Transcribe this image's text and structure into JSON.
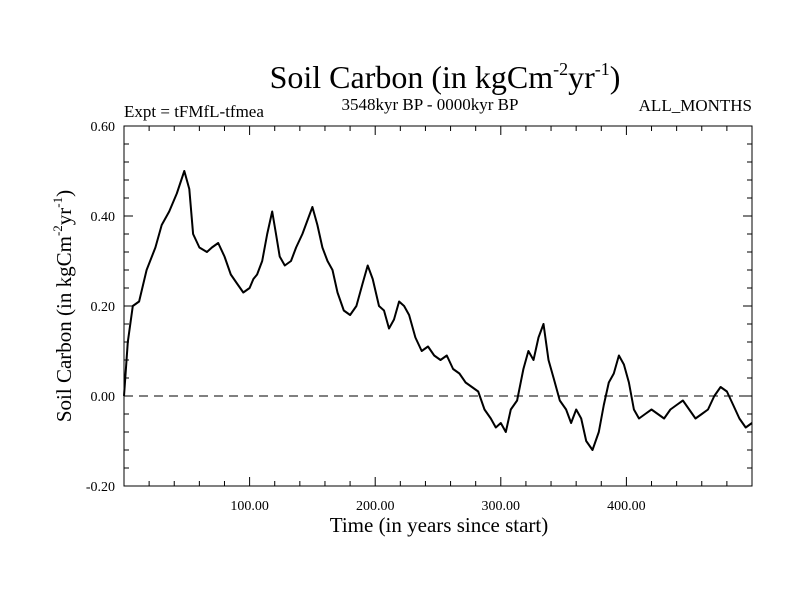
{
  "chart_data": {
    "type": "line",
    "title_main": "Soil Carbon (in kgCm",
    "title_exp1": "-2",
    "title_mid": "yr",
    "title_exp2": "-1",
    "title_end": ")",
    "left_label": "Expt = tFMfL-tfmea",
    "center_label": "3548kyr BP - 0000kyr BP",
    "right_label": "ALL_MONTHS",
    "xlabel": "Time (in years since start)",
    "ylabel_main": "Soil Carbon (in kgCm",
    "ylabel_exp1": "-2",
    "ylabel_mid": "yr",
    "ylabel_exp2": "-1",
    "ylabel_end": ")",
    "xlim": [
      0,
      500
    ],
    "ylim": [
      -0.2,
      0.6
    ],
    "x_ticks": [
      100,
      200,
      300,
      400
    ],
    "x_tick_labels": [
      "100.00",
      "200.00",
      "300.00",
      "400.00"
    ],
    "y_ticks": [
      -0.2,
      0.0,
      0.2,
      0.4,
      0.6
    ],
    "y_tick_labels": [
      "-0.20",
      "0.00",
      "0.20",
      "0.40",
      "0.60"
    ],
    "zero_line": 0.0,
    "series": [
      {
        "name": "Soil Carbon",
        "x": [
          0,
          3,
          7,
          12,
          18,
          25,
          30,
          36,
          42,
          48,
          52,
          55,
          60,
          66,
          70,
          75,
          80,
          85,
          90,
          95,
          100,
          103,
          106,
          110,
          114,
          118,
          121,
          124,
          128,
          133,
          137,
          142,
          146,
          150,
          154,
          158,
          162,
          166,
          170,
          175,
          180,
          185,
          190,
          194,
          198,
          203,
          207,
          211,
          215,
          219,
          223,
          227,
          232,
          237,
          242,
          247,
          252,
          257,
          262,
          267,
          272,
          277,
          282,
          287,
          292,
          296,
          300,
          304,
          308,
          313,
          318,
          322,
          326,
          330,
          334,
          338,
          342,
          347,
          352,
          356,
          360,
          364,
          368,
          373,
          378,
          382,
          386,
          390,
          394,
          398,
          402,
          406,
          410,
          415,
          420,
          425,
          430,
          435,
          440,
          445,
          450,
          455,
          460,
          465,
          470,
          475,
          480,
          485,
          490,
          495,
          500
        ],
        "y": [
          0.0,
          0.12,
          0.2,
          0.21,
          0.28,
          0.33,
          0.38,
          0.41,
          0.45,
          0.5,
          0.46,
          0.36,
          0.33,
          0.32,
          0.33,
          0.34,
          0.31,
          0.27,
          0.25,
          0.23,
          0.24,
          0.26,
          0.27,
          0.3,
          0.36,
          0.41,
          0.36,
          0.31,
          0.29,
          0.3,
          0.33,
          0.36,
          0.39,
          0.42,
          0.38,
          0.33,
          0.3,
          0.28,
          0.23,
          0.19,
          0.18,
          0.2,
          0.25,
          0.29,
          0.26,
          0.2,
          0.19,
          0.15,
          0.17,
          0.21,
          0.2,
          0.18,
          0.13,
          0.1,
          0.11,
          0.09,
          0.08,
          0.09,
          0.06,
          0.05,
          0.03,
          0.02,
          0.01,
          -0.03,
          -0.05,
          -0.07,
          -0.06,
          -0.08,
          -0.03,
          -0.01,
          0.06,
          0.1,
          0.08,
          0.13,
          0.16,
          0.08,
          0.04,
          -0.01,
          -0.03,
          -0.06,
          -0.03,
          -0.05,
          -0.1,
          -0.12,
          -0.08,
          -0.02,
          0.03,
          0.05,
          0.09,
          0.07,
          0.03,
          -0.03,
          -0.05,
          -0.04,
          -0.03,
          -0.04,
          -0.05,
          -0.03,
          -0.02,
          -0.01,
          -0.03,
          -0.05,
          -0.04,
          -0.03,
          0.0,
          0.02,
          0.01,
          -0.02,
          -0.05,
          -0.07,
          -0.06
        ]
      }
    ]
  }
}
